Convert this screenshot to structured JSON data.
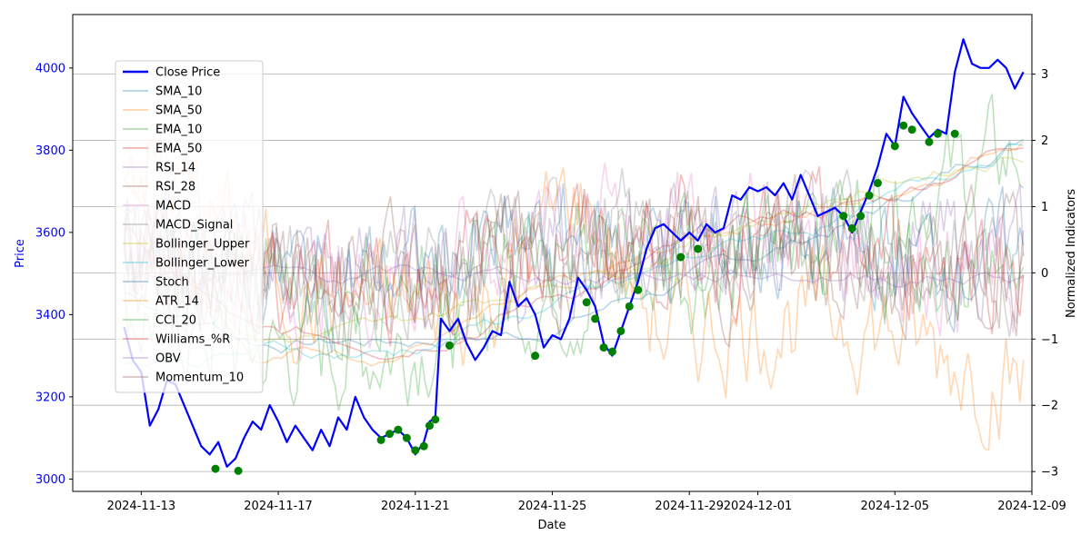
{
  "chart_data": {
    "type": "line",
    "title": "",
    "xlabel": "Date",
    "ylabel_left": "Price",
    "ylabel_right": "Normalized Indicators",
    "x_tick_labels": [
      "2024-11-13",
      "2024-11-17",
      "2024-11-21",
      "2024-11-25",
      "2024-11-29",
      "2024-12-01",
      "2024-12-05",
      "2024-12-09"
    ],
    "x_tick_dates": [
      "2024-11-13",
      "2024-11-17",
      "2024-11-21",
      "2024-11-25",
      "2024-11-29",
      "2024-12-01",
      "2024-12-05",
      "2024-12-09"
    ],
    "xlim": [
      "2024-11-11",
      "2024-12-09"
    ],
    "ylim_left": [
      2970,
      4130
    ],
    "yticks_left": [
      3000,
      3200,
      3400,
      3600,
      3800,
      4000
    ],
    "ylim_right": [
      -3.3,
      3.9
    ],
    "yticks_right": [
      -3,
      -2,
      -1,
      0,
      1,
      2,
      3
    ],
    "grid": "horizontal lines at right-axis ticks",
    "legend_position": "upper-left",
    "colors": {
      "price": "#0000ff",
      "signal_marker": "#008000",
      "axis_left_text": "#0000ff",
      "axis_text": "#000000",
      "grid": "#b0b0b0"
    },
    "price_series": {
      "name": "Close Price",
      "points": [
        [
          "2024-11-12 12:00",
          3370
        ],
        [
          "2024-11-12 18:00",
          3290
        ],
        [
          "2024-11-13 00:00",
          3260
        ],
        [
          "2024-11-13 06:00",
          3130
        ],
        [
          "2024-11-13 12:00",
          3170
        ],
        [
          "2024-11-13 18:00",
          3240
        ],
        [
          "2024-11-14 00:00",
          3230
        ],
        [
          "2024-11-14 06:00",
          3180
        ],
        [
          "2024-11-14 12:00",
          3130
        ],
        [
          "2024-11-14 18:00",
          3080
        ],
        [
          "2024-11-15 00:00",
          3060
        ],
        [
          "2024-11-15 06:00",
          3090
        ],
        [
          "2024-11-15 12:00",
          3030
        ],
        [
          "2024-11-15 18:00",
          3050
        ],
        [
          "2024-11-16 00:00",
          3100
        ],
        [
          "2024-11-16 06:00",
          3140
        ],
        [
          "2024-11-16 12:00",
          3120
        ],
        [
          "2024-11-16 18:00",
          3180
        ],
        [
          "2024-11-17 00:00",
          3140
        ],
        [
          "2024-11-17 06:00",
          3090
        ],
        [
          "2024-11-17 12:00",
          3130
        ],
        [
          "2024-11-17 18:00",
          3100
        ],
        [
          "2024-11-18 00:00",
          3070
        ],
        [
          "2024-11-18 06:00",
          3120
        ],
        [
          "2024-11-18 12:00",
          3080
        ],
        [
          "2024-11-18 18:00",
          3150
        ],
        [
          "2024-11-19 00:00",
          3120
        ],
        [
          "2024-11-19 06:00",
          3200
        ],
        [
          "2024-11-19 12:00",
          3150
        ],
        [
          "2024-11-19 18:00",
          3120
        ],
        [
          "2024-11-20 00:00",
          3100
        ],
        [
          "2024-11-20 06:00",
          3110
        ],
        [
          "2024-11-20 12:00",
          3120
        ],
        [
          "2024-11-20 18:00",
          3100
        ],
        [
          "2024-11-21 00:00",
          3060
        ],
        [
          "2024-11-21 06:00",
          3090
        ],
        [
          "2024-11-21 10:00",
          3140
        ],
        [
          "2024-11-21 14:00",
          3150
        ],
        [
          "2024-11-21 18:00",
          3390
        ],
        [
          "2024-11-22 00:00",
          3360
        ],
        [
          "2024-11-22 06:00",
          3390
        ],
        [
          "2024-11-22 12:00",
          3330
        ],
        [
          "2024-11-22 18:00",
          3290
        ],
        [
          "2024-11-23 00:00",
          3320
        ],
        [
          "2024-11-23 06:00",
          3360
        ],
        [
          "2024-11-23 12:00",
          3350
        ],
        [
          "2024-11-23 18:00",
          3480
        ],
        [
          "2024-11-24 00:00",
          3420
        ],
        [
          "2024-11-24 06:00",
          3440
        ],
        [
          "2024-11-24 12:00",
          3400
        ],
        [
          "2024-11-24 18:00",
          3320
        ],
        [
          "2024-11-25 00:00",
          3350
        ],
        [
          "2024-11-25 06:00",
          3340
        ],
        [
          "2024-11-25 12:00",
          3390
        ],
        [
          "2024-11-25 18:00",
          3490
        ],
        [
          "2024-11-26 00:00",
          3460
        ],
        [
          "2024-11-26 06:00",
          3420
        ],
        [
          "2024-11-26 12:00",
          3330
        ],
        [
          "2024-11-26 18:00",
          3300
        ],
        [
          "2024-11-27 00:00",
          3360
        ],
        [
          "2024-11-27 06:00",
          3420
        ],
        [
          "2024-11-27 12:00",
          3480
        ],
        [
          "2024-11-27 18:00",
          3560
        ],
        [
          "2024-11-28 00:00",
          3610
        ],
        [
          "2024-11-28 06:00",
          3620
        ],
        [
          "2024-11-28 12:00",
          3600
        ],
        [
          "2024-11-28 18:00",
          3580
        ],
        [
          "2024-11-29 00:00",
          3600
        ],
        [
          "2024-11-29 06:00",
          3580
        ],
        [
          "2024-11-29 12:00",
          3620
        ],
        [
          "2024-11-29 18:00",
          3600
        ],
        [
          "2024-11-30 00:00",
          3610
        ],
        [
          "2024-11-30 06:00",
          3690
        ],
        [
          "2024-11-30 12:00",
          3680
        ],
        [
          "2024-11-30 18:00",
          3710
        ],
        [
          "2024-12-01 00:00",
          3700
        ],
        [
          "2024-12-01 06:00",
          3710
        ],
        [
          "2024-12-01 12:00",
          3690
        ],
        [
          "2024-12-01 18:00",
          3720
        ],
        [
          "2024-12-02 00:00",
          3680
        ],
        [
          "2024-12-02 06:00",
          3740
        ],
        [
          "2024-12-02 12:00",
          3690
        ],
        [
          "2024-12-02 18:00",
          3640
        ],
        [
          "2024-12-03 00:00",
          3650
        ],
        [
          "2024-12-03 06:00",
          3660
        ],
        [
          "2024-12-03 12:00",
          3640
        ],
        [
          "2024-12-03 18:00",
          3600
        ],
        [
          "2024-12-04 00:00",
          3650
        ],
        [
          "2024-12-04 06:00",
          3700
        ],
        [
          "2024-12-04 12:00",
          3760
        ],
        [
          "2024-12-04 18:00",
          3840
        ],
        [
          "2024-12-05 00:00",
          3810
        ],
        [
          "2024-12-05 06:00",
          3930
        ],
        [
          "2024-12-05 12:00",
          3890
        ],
        [
          "2024-12-05 18:00",
          3860
        ],
        [
          "2024-12-06 00:00",
          3830
        ],
        [
          "2024-12-06 06:00",
          3850
        ],
        [
          "2024-12-06 12:00",
          3840
        ],
        [
          "2024-12-06 18:00",
          3990
        ],
        [
          "2024-12-07 00:00",
          4070
        ],
        [
          "2024-12-07 06:00",
          4010
        ],
        [
          "2024-12-07 12:00",
          4000
        ],
        [
          "2024-12-07 18:00",
          4000
        ],
        [
          "2024-12-08 00:00",
          4020
        ],
        [
          "2024-12-08 06:00",
          4000
        ],
        [
          "2024-12-08 12:00",
          3950
        ],
        [
          "2024-12-08 18:00",
          3990
        ]
      ]
    },
    "signal_points": [
      [
        "2024-11-15 04:00",
        3025
      ],
      [
        "2024-11-15 20:00",
        3020
      ],
      [
        "2024-11-20 00:00",
        3095
      ],
      [
        "2024-11-20 06:00",
        3110
      ],
      [
        "2024-11-20 12:00",
        3120
      ],
      [
        "2024-11-20 18:00",
        3100
      ],
      [
        "2024-11-21 00:00",
        3070
      ],
      [
        "2024-11-21 06:00",
        3080
      ],
      [
        "2024-11-21 10:00",
        3130
      ],
      [
        "2024-11-21 14:00",
        3145
      ],
      [
        "2024-11-22 00:00",
        3325
      ],
      [
        "2024-11-24 12:00",
        3300
      ],
      [
        "2024-11-26 00:00",
        3430
      ],
      [
        "2024-11-26 06:00",
        3390
      ],
      [
        "2024-11-26 12:00",
        3320
      ],
      [
        "2024-11-26 18:00",
        3310
      ],
      [
        "2024-11-27 00:00",
        3360
      ],
      [
        "2024-11-27 06:00",
        3420
      ],
      [
        "2024-11-27 12:00",
        3460
      ],
      [
        "2024-11-28 18:00",
        3540
      ],
      [
        "2024-11-29 06:00",
        3560
      ],
      [
        "2024-12-03 12:00",
        3640
      ],
      [
        "2024-12-03 18:00",
        3610
      ],
      [
        "2024-12-04 00:00",
        3640
      ],
      [
        "2024-12-04 06:00",
        3690
      ],
      [
        "2024-12-04 12:00",
        3720
      ],
      [
        "2024-12-05 00:00",
        3810
      ],
      [
        "2024-12-05 06:00",
        3860
      ],
      [
        "2024-12-05 12:00",
        3850
      ],
      [
        "2024-12-06 00:00",
        3820
      ],
      [
        "2024-12-06 06:00",
        3840
      ],
      [
        "2024-12-06 18:00",
        3840
      ]
    ],
    "indicator_series": [
      {
        "name": "SMA_10",
        "color": "#1f77b4",
        "kind": "smooth",
        "points": [
          [
            0,
            -0.3
          ],
          [
            0.15,
            -1.0
          ],
          [
            0.3,
            -1.0
          ],
          [
            0.45,
            -0.9
          ],
          [
            0.55,
            -0.4
          ],
          [
            0.7,
            0.2
          ],
          [
            0.85,
            1.0
          ],
          [
            1,
            2.1
          ]
        ]
      },
      {
        "name": "SMA_50",
        "color": "#ff7f0e",
        "kind": "smooth",
        "points": [
          [
            0,
            1.5
          ],
          [
            0.15,
            -1.1
          ],
          [
            0.3,
            -1.1
          ],
          [
            0.45,
            -0.5
          ],
          [
            0.55,
            -0.1
          ],
          [
            0.7,
            0.8
          ],
          [
            0.85,
            1.2
          ],
          [
            1,
            2.2
          ]
        ]
      },
      {
        "name": "EMA_10",
        "color": "#2ca02c",
        "kind": "noisy",
        "points": [
          [
            0,
            -0.5
          ],
          [
            0.15,
            -1.2
          ],
          [
            0.3,
            -1.1
          ],
          [
            0.45,
            -0.3
          ],
          [
            0.55,
            -0.2
          ],
          [
            0.7,
            0.3
          ],
          [
            0.85,
            1.1
          ],
          [
            1,
            1.8
          ]
        ]
      },
      {
        "name": "EMA_50",
        "color": "#d62728",
        "kind": "smooth",
        "points": [
          [
            0,
            0.6
          ],
          [
            0.15,
            -1.05
          ],
          [
            0.3,
            -1.05
          ],
          [
            0.45,
            -0.4
          ],
          [
            0.55,
            0.0
          ],
          [
            0.7,
            0.7
          ],
          [
            0.85,
            1.1
          ],
          [
            1,
            2.1
          ]
        ]
      },
      {
        "name": "RSI_14",
        "color": "#9467bd",
        "kind": "noisy",
        "points": [
          [
            0,
            0.5
          ],
          [
            0.25,
            0.0
          ],
          [
            0.5,
            0.3
          ],
          [
            0.75,
            0.5
          ],
          [
            1,
            0.2
          ]
        ]
      },
      {
        "name": "RSI_28",
        "color": "#8c564b",
        "kind": "noisy",
        "points": [
          [
            0,
            0.2
          ],
          [
            0.25,
            -0.1
          ],
          [
            0.5,
            0.2
          ],
          [
            0.75,
            0.4
          ],
          [
            1,
            0.1
          ]
        ]
      },
      {
        "name": "MACD",
        "color": "#e377c2",
        "kind": "noisy",
        "points": [
          [
            0,
            0.3
          ],
          [
            0.25,
            -0.3
          ],
          [
            0.5,
            0.8
          ],
          [
            0.75,
            0.6
          ],
          [
            1,
            -0.2
          ]
        ]
      },
      {
        "name": "MACD_Signal",
        "color": "#7f7f7f",
        "kind": "noisy",
        "points": [
          [
            0,
            0.1
          ],
          [
            0.25,
            -0.2
          ],
          [
            0.5,
            0.6
          ],
          [
            0.75,
            0.5
          ],
          [
            1,
            0.0
          ]
        ]
      },
      {
        "name": "Bollinger_Upper",
        "color": "#bcbd22",
        "kind": "smooth",
        "points": [
          [
            0,
            0.9
          ],
          [
            0.15,
            -0.9
          ],
          [
            0.3,
            -0.9
          ],
          [
            0.45,
            -0.2
          ],
          [
            0.55,
            0.2
          ],
          [
            0.7,
            0.9
          ],
          [
            0.85,
            1.4
          ],
          [
            1,
            1.9
          ]
        ]
      },
      {
        "name": "Bollinger_Lower",
        "color": "#17becf",
        "kind": "smooth",
        "points": [
          [
            0,
            -1.4
          ],
          [
            0.15,
            -1.2
          ],
          [
            0.3,
            -1.2
          ],
          [
            0.45,
            -0.6
          ],
          [
            0.55,
            -0.3
          ],
          [
            0.7,
            0.5
          ],
          [
            0.85,
            1.0
          ],
          [
            1,
            2.1
          ]
        ]
      },
      {
        "name": "Stoch",
        "color": "#1f77b4",
        "kind": "noisy",
        "points": [
          [
            0,
            0.3
          ],
          [
            0.25,
            -0.1
          ],
          [
            0.5,
            0.5
          ],
          [
            0.75,
            0.3
          ],
          [
            1,
            0.2
          ]
        ]
      },
      {
        "name": "ATR_14",
        "color": "#ff7f0e",
        "kind": "noisy",
        "points": [
          [
            0,
            2.0
          ],
          [
            0.2,
            -0.4
          ],
          [
            0.4,
            -0.5
          ],
          [
            0.5,
            1.2
          ],
          [
            0.6,
            -0.9
          ],
          [
            0.8,
            -0.6
          ],
          [
            1,
            -1.7
          ]
        ]
      },
      {
        "name": "CCI_20",
        "color": "#2ca02c",
        "kind": "noisy",
        "points": [
          [
            0,
            0.2
          ],
          [
            0.25,
            -0.3
          ],
          [
            0.5,
            0.4
          ],
          [
            0.75,
            0.2
          ],
          [
            1,
            0.1
          ]
        ]
      },
      {
        "name": "Williams_%R",
        "color": "#d62728",
        "kind": "noisy",
        "points": [
          [
            0,
            0.3
          ],
          [
            0.25,
            -0.2
          ],
          [
            0.5,
            0.5
          ],
          [
            0.75,
            0.4
          ],
          [
            1,
            0.2
          ]
        ]
      },
      {
        "name": "OBV",
        "color": "#9467bd",
        "kind": "smooth",
        "points": [
          [
            0,
            -0.1
          ],
          [
            0.3,
            -0.1
          ],
          [
            0.6,
            0.0
          ],
          [
            1,
            0.0
          ]
        ]
      },
      {
        "name": "Momentum_10",
        "color": "#8c564b",
        "kind": "noisy",
        "points": [
          [
            0,
            0.2
          ],
          [
            0.25,
            -0.2
          ],
          [
            0.5,
            0.3
          ],
          [
            0.75,
            0.2
          ],
          [
            1,
            0.1
          ]
        ]
      }
    ]
  }
}
